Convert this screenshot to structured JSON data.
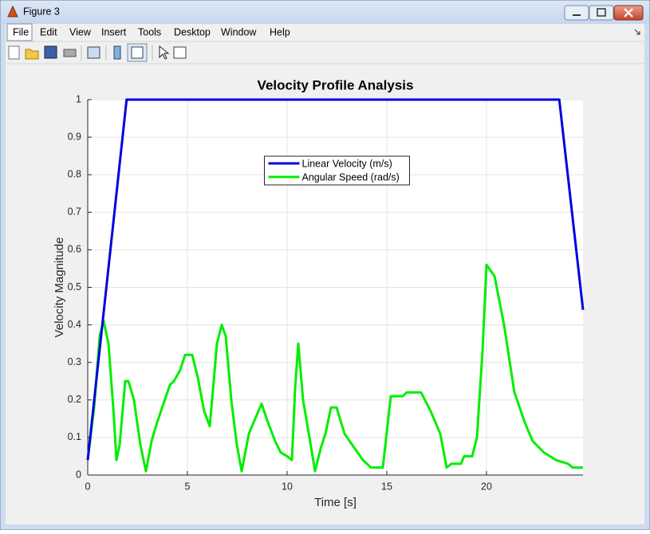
{
  "window": {
    "title": "Figure 3",
    "menu": [
      "File",
      "Edit",
      "View",
      "Insert",
      "Tools",
      "Desktop",
      "Window",
      "Help"
    ]
  },
  "chart_data": {
    "type": "line",
    "title": "Velocity Profile Analysis",
    "x_label": "Time [s]",
    "y_label": "Velocity Magnitude",
    "xlim": [
      0,
      24.84
    ],
    "ylim": [
      0,
      1
    ],
    "xticks": [
      0,
      5,
      10,
      15,
      20
    ],
    "yticks": [
      0,
      0.1,
      0.2,
      0.3,
      0.4,
      0.5,
      0.6,
      0.7,
      0.8,
      0.9,
      1
    ],
    "grid": true,
    "legend_loc": "north",
    "series": [
      {
        "name": "Linear Velocity (m/s)",
        "color": "#0000e0",
        "width": 3,
        "x": [
          0,
          1.95,
          23.65,
          24.84
        ],
        "values": [
          0.04,
          1,
          1,
          0.44
        ]
      },
      {
        "name": "Angular Speed (rad/s)",
        "color": "#00ee00",
        "width": 3,
        "x": [
          0,
          0.32,
          0.6,
          0.8,
          1.04,
          1.28,
          1.44,
          1.6,
          1.88,
          2.04,
          2.32,
          2.64,
          2.92,
          3.2,
          3.48,
          3.8,
          4.12,
          4.32,
          4.64,
          4.88,
          5.24,
          5.52,
          5.84,
          6.12,
          6.32,
          6.48,
          6.72,
          6.92,
          7.2,
          7.48,
          7.72,
          8.08,
          8.4,
          8.72,
          9.04,
          9.4,
          9.68,
          10,
          10.24,
          10.4,
          10.56,
          10.8,
          11.12,
          11.4,
          11.68,
          11.92,
          12.2,
          12.48,
          12.88,
          13.4,
          13.8,
          14.2,
          14.8,
          15.2,
          15.8,
          16,
          16.72,
          17.2,
          17.68,
          18,
          18.24,
          18.72,
          18.88,
          19.28,
          19.52,
          19.8,
          20,
          20.4,
          20.88,
          21.4,
          21.92,
          22.32,
          22.88,
          23.48,
          24.08,
          24.32,
          24.84
        ],
        "values": [
          0.04,
          0.18,
          0.37,
          0.41,
          0.35,
          0.18,
          0.04,
          0.08,
          0.25,
          0.25,
          0.2,
          0.08,
          0.01,
          0.09,
          0.14,
          0.19,
          0.24,
          0.25,
          0.28,
          0.32,
          0.32,
          0.26,
          0.17,
          0.13,
          0.25,
          0.35,
          0.4,
          0.37,
          0.2,
          0.08,
          0.01,
          0.11,
          0.15,
          0.19,
          0.14,
          0.09,
          0.06,
          0.05,
          0.04,
          0.23,
          0.35,
          0.2,
          0.1,
          0.01,
          0.07,
          0.11,
          0.18,
          0.18,
          0.11,
          0.07,
          0.04,
          0.02,
          0.02,
          0.21,
          0.21,
          0.22,
          0.22,
          0.17,
          0.11,
          0.02,
          0.03,
          0.03,
          0.05,
          0.05,
          0.1,
          0.33,
          0.56,
          0.53,
          0.4,
          0.22,
          0.14,
          0.09,
          0.06,
          0.04,
          0.03,
          0.02,
          0.02
        ]
      }
    ]
  }
}
